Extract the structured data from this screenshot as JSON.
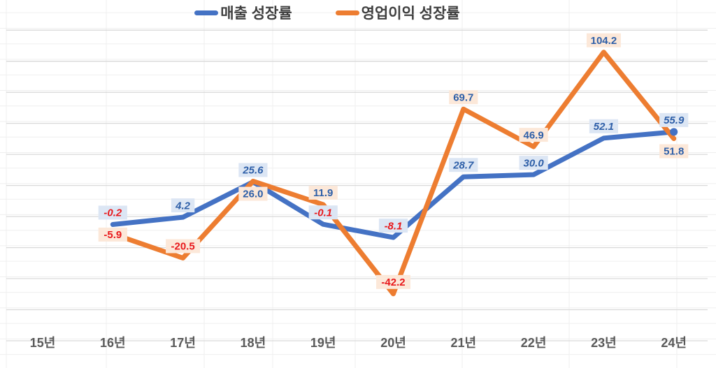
{
  "chart_data": {
    "type": "line",
    "title": "",
    "xlabel": "",
    "ylabel": "",
    "categories": [
      "15년",
      "16년",
      "17년",
      "18년",
      "19년",
      "20년",
      "21년",
      "22년",
      "23년",
      "24년"
    ],
    "series": [
      {
        "name": "매출 성장률",
        "color": "#4472c4",
        "label_bg": "#dce6f4",
        "label_italic": true,
        "end_marker": true,
        "values": [
          null,
          -0.2,
          4.2,
          25.6,
          -0.1,
          -8.1,
          28.7,
          30.0,
          52.1,
          55.9
        ],
        "label_positions": [
          null,
          "above",
          "above",
          "above",
          "above",
          "above",
          "above",
          "above",
          "above",
          "above"
        ]
      },
      {
        "name": "영업이익 성장률",
        "color": "#ed7d31",
        "label_bg": "#fce8d9",
        "label_italic": false,
        "end_marker": false,
        "values": [
          null,
          -5.9,
          -20.5,
          26.0,
          11.9,
          -42.2,
          69.7,
          46.9,
          104.2,
          51.8
        ],
        "label_positions": [
          null,
          "center",
          "above",
          "below",
          "above",
          "above",
          "above",
          "above",
          "above",
          "below"
        ]
      }
    ],
    "label_value_colors": {
      "positive": "#2e5fa8",
      "negative": "#e8191c"
    },
    "data_label_decimals": 1,
    "x_axis": {
      "label_color": "#595959"
    },
    "y_axis": {
      "tick_labels_visible": false,
      "range": [
        -70,
        118
      ],
      "gridline_count": 11
    },
    "legend_position": "top-center",
    "background": "spreadsheet-grid"
  }
}
